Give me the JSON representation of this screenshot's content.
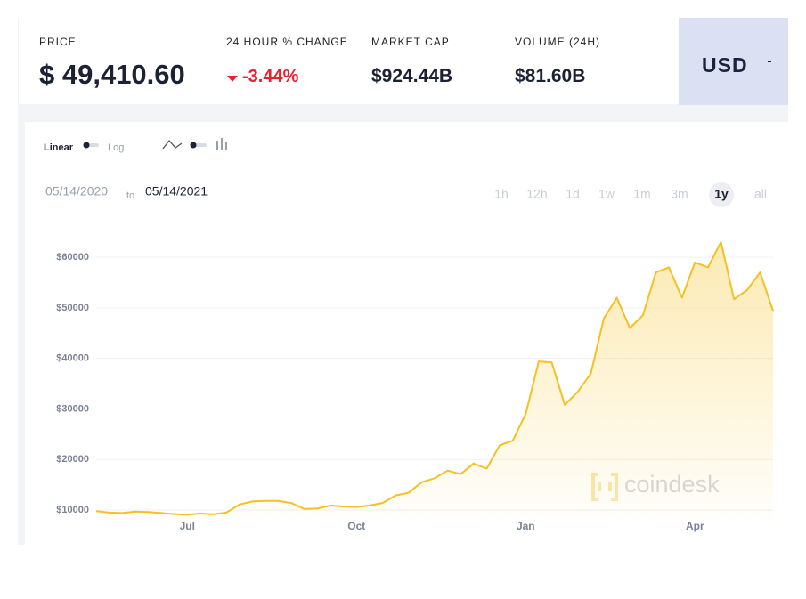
{
  "stats": [
    {
      "label": "PRICE",
      "value": "$ 49,410.60"
    },
    {
      "label": "24 HOUR % CHANGE",
      "value": "-3.44%"
    },
    {
      "label": "MARKET CAP",
      "value": "$924.44B"
    },
    {
      "label": "VOLUME (24H)",
      "value": "$81.60B"
    }
  ],
  "currency": "USD",
  "scale_options": [
    "Linear",
    "Log"
  ],
  "date_range": {
    "from": "05/14/2020",
    "separator": "to",
    "to": "05/14/2021"
  },
  "ranges": [
    "1h",
    "12h",
    "1d",
    "1w",
    "1m",
    "3m",
    "1y",
    "all"
  ],
  "selected_range": "1y",
  "watermark": "coindesk",
  "chart_data": {
    "type": "line",
    "color": "#f5c022",
    "area": true,
    "grid": true,
    "categories": [
      null,
      null,
      null,
      null,
      null,
      null,
      null,
      "Jul",
      null,
      null,
      null,
      null,
      null,
      null,
      null,
      null,
      null,
      null,
      null,
      null,
      "Oct",
      null,
      null,
      null,
      null,
      null,
      null,
      null,
      null,
      null,
      null,
      null,
      null,
      "Jan",
      null,
      null,
      null,
      null,
      null,
      null,
      null,
      null,
      null,
      null,
      null,
      null,
      "Apr",
      null,
      null,
      null,
      null,
      null,
      null
    ],
    "values": [
      9800,
      9500,
      9400,
      9700,
      9600,
      9400,
      9200,
      9100,
      9300,
      9150,
      9500,
      11100,
      11700,
      11800,
      11800,
      11400,
      10200,
      10300,
      10900,
      10700,
      10600,
      10900,
      11400,
      12900,
      13400,
      15500,
      16300,
      17800,
      17100,
      19200,
      18200,
      22800,
      23700,
      29000,
      39400,
      39200,
      30800,
      33400,
      37000,
      47900,
      52000,
      46000,
      48500,
      57000,
      58000,
      52000,
      59000,
      58000,
      63000,
      51700,
      53500,
      57000,
      49400
    ],
    "ylim": [
      8000,
      66000
    ],
    "yticks": [
      {
        "value": 10000,
        "label": "$10000"
      },
      {
        "value": 20000,
        "label": "$20000"
      },
      {
        "value": 30000,
        "label": "$30000"
      },
      {
        "value": 40000,
        "label": "$40000"
      },
      {
        "value": 50000,
        "label": "$50000"
      },
      {
        "value": 60000,
        "label": "$60000"
      }
    ]
  }
}
